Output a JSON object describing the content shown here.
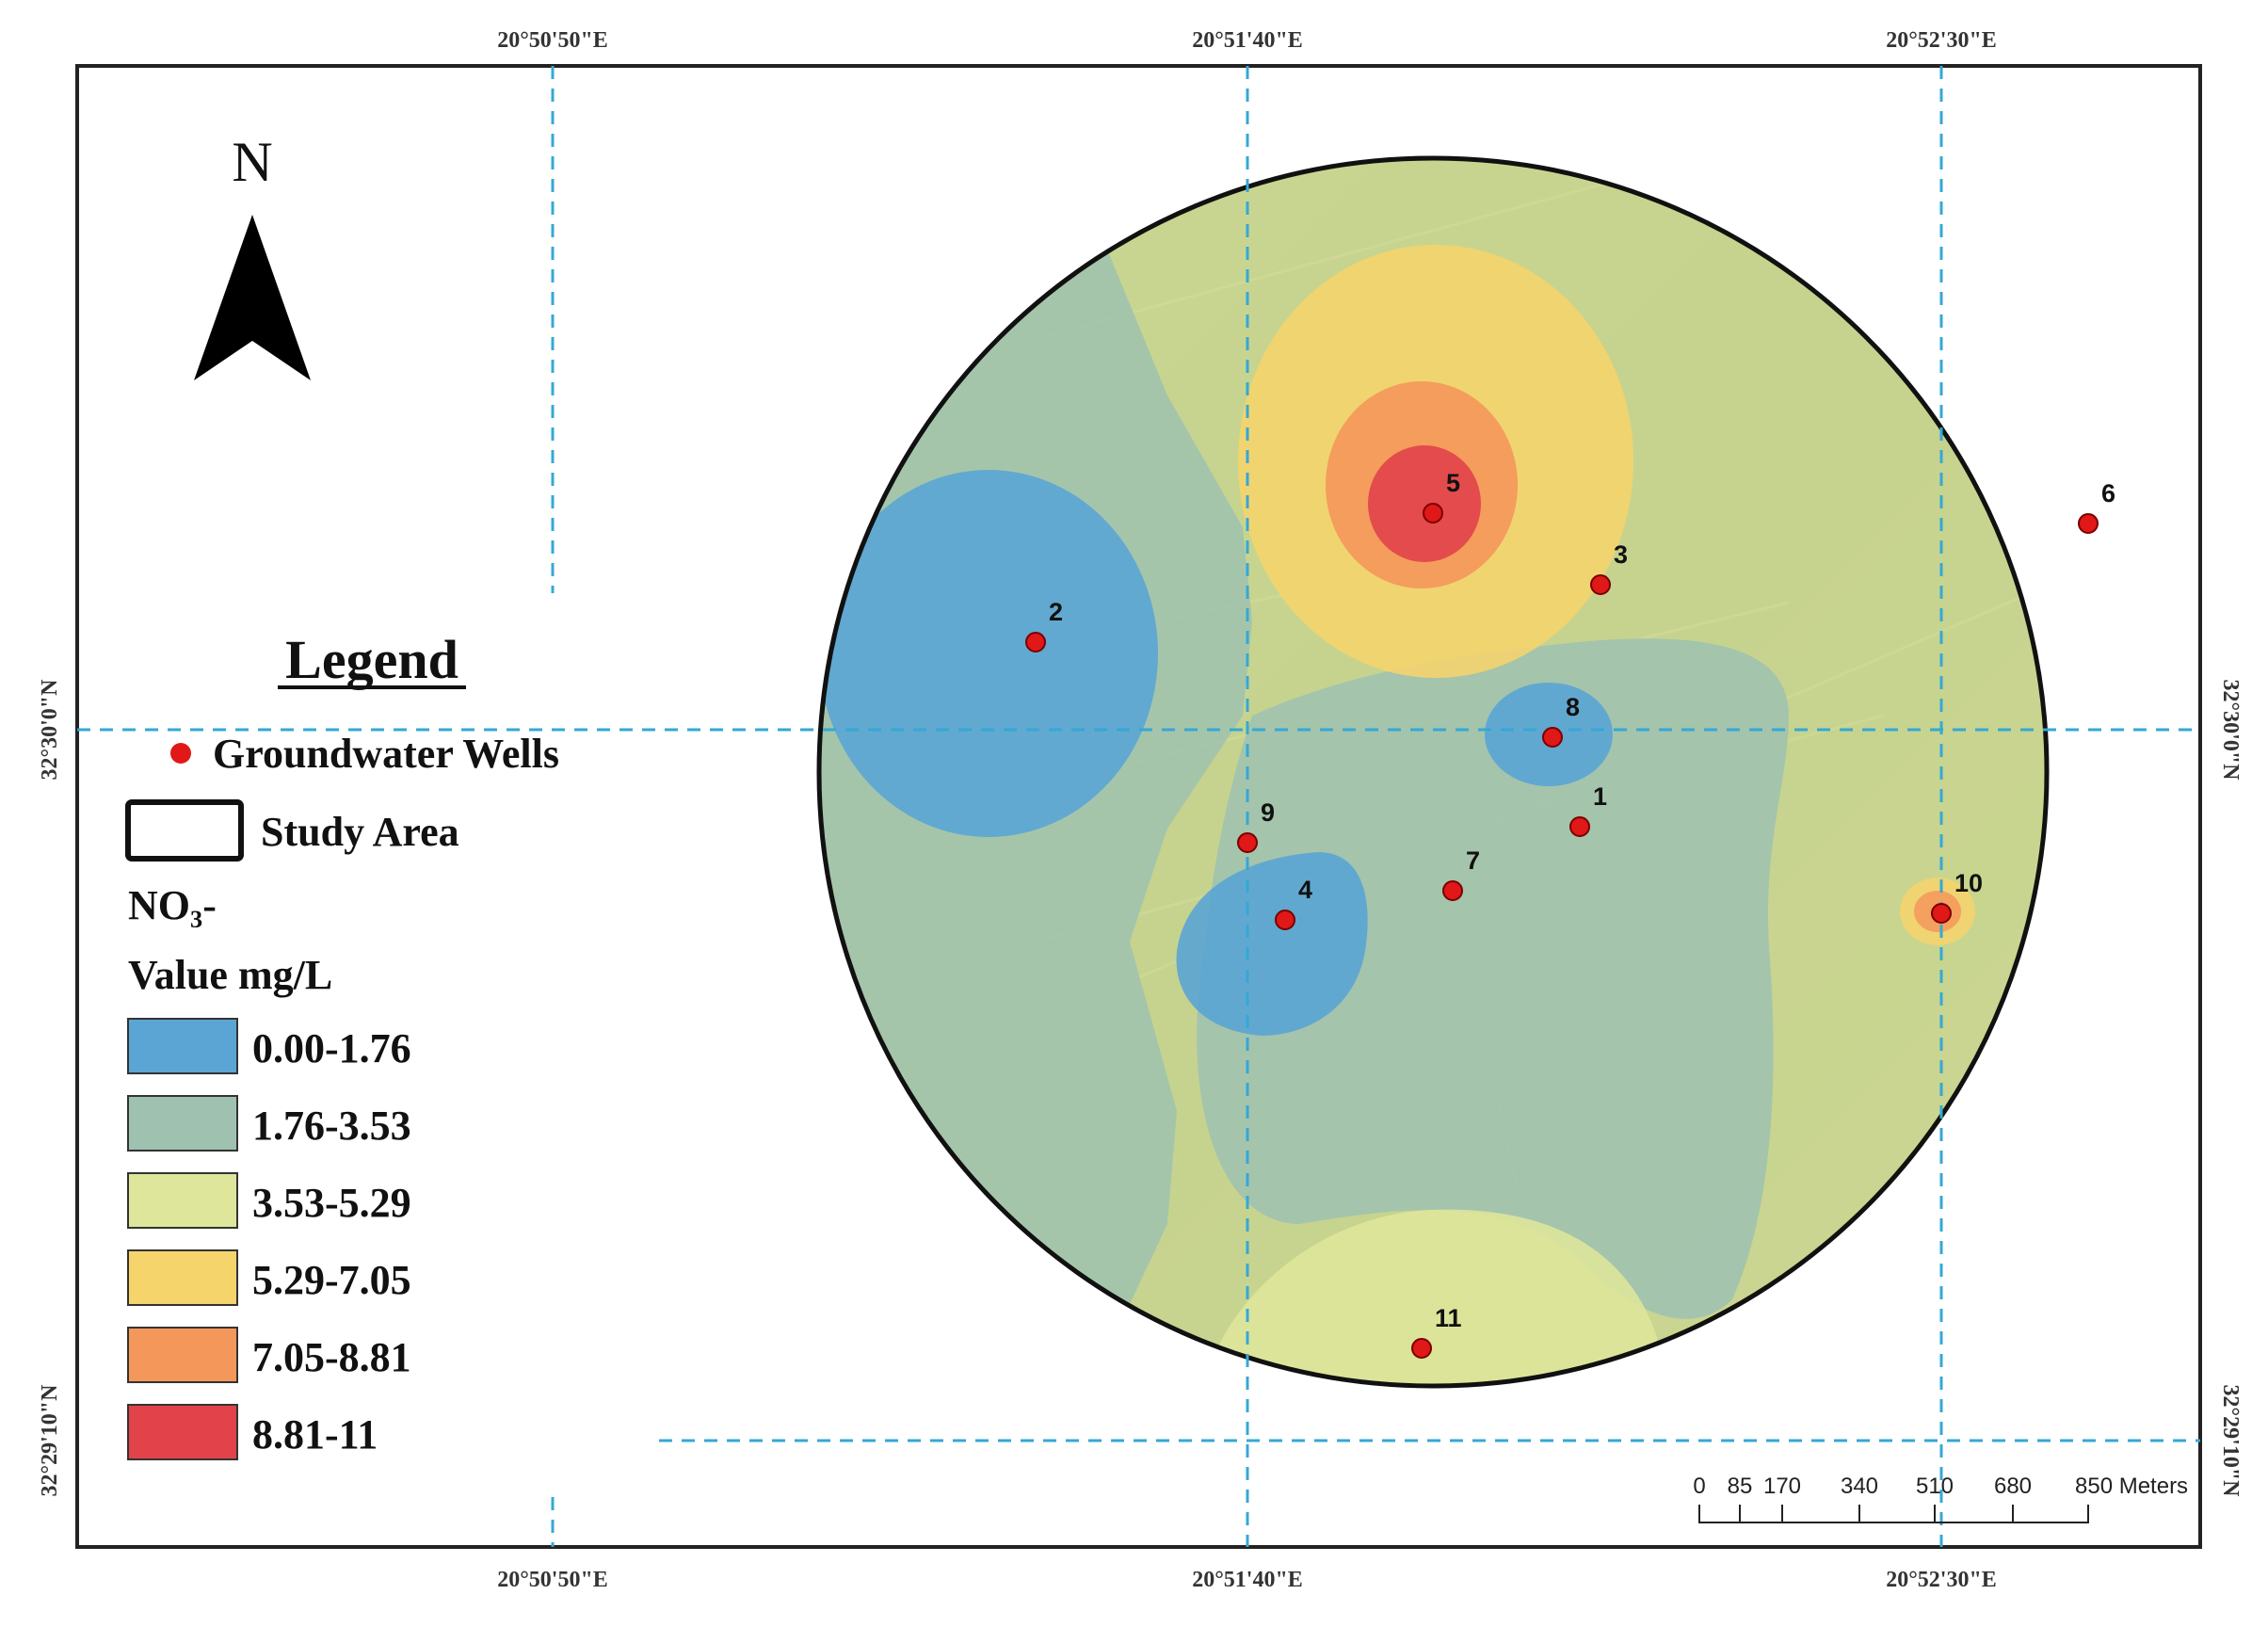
{
  "map": {
    "north_label": "N",
    "coordinates": {
      "top": [
        "20°50'50\"E",
        "20°51'40\"E",
        "20°52'30\"E"
      ],
      "bottom": [
        "20°50'50\"E",
        "20°51'40\"E",
        "20°52'30\"E"
      ],
      "left": [
        "32°30'0\"N",
        "32°29'10\"N"
      ],
      "right": [
        "32°30'0\"N",
        "32°29'10\"N"
      ]
    },
    "wells": [
      {
        "id": "1",
        "label": "1"
      },
      {
        "id": "2",
        "label": "2"
      },
      {
        "id": "3",
        "label": "3"
      },
      {
        "id": "4",
        "label": "4"
      },
      {
        "id": "5",
        "label": "5"
      },
      {
        "id": "6",
        "label": "6"
      },
      {
        "id": "7",
        "label": "7"
      },
      {
        "id": "8",
        "label": "8"
      },
      {
        "id": "9",
        "label": "9"
      },
      {
        "id": "10",
        "label": "10"
      },
      {
        "id": "11",
        "label": "11"
      }
    ],
    "scale_bar": {
      "labels": [
        "0",
        "85",
        "170",
        "340",
        "510",
        "680",
        "850 Meters"
      ]
    }
  },
  "legend": {
    "title": "Legend",
    "wells_label": "Groundwater Wells",
    "study_area_label": "Study Area",
    "parameter_label": "NO₃-",
    "value_label": "Value mg/L",
    "classes": [
      {
        "range": "0.00-1.76",
        "color": "#5aa5d4"
      },
      {
        "range": "1.76-3.53",
        "color": "#9fc2b0"
      },
      {
        "range": "3.53-5.29",
        "color": "#dde69a"
      },
      {
        "range": "5.29-7.05",
        "color": "#f6d46c"
      },
      {
        "range": "7.05-8.81",
        "color": "#f4975a"
      },
      {
        "range": "8.81-11",
        "color": "#e2424a"
      }
    ]
  },
  "colors": {
    "well_marker": "#e01818",
    "grid_line": "#35a8d6",
    "frame": "#222222"
  }
}
